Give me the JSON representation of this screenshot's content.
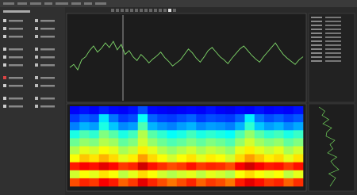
{
  "trace": {
    "values": [
      38,
      42,
      35,
      48,
      52,
      60,
      66,
      58,
      63,
      70,
      64,
      72,
      61,
      68,
      55,
      60,
      52,
      47,
      55,
      50,
      44,
      49,
      53,
      58,
      51,
      46,
      40,
      44,
      48,
      55,
      62,
      57,
      50,
      45,
      52,
      60,
      64,
      58,
      52,
      48,
      43,
      50,
      56,
      62,
      66,
      60,
      54,
      49,
      45,
      52,
      58,
      64,
      70,
      62,
      55,
      50,
      46,
      42,
      48,
      52
    ]
  },
  "spectrogram": {
    "rows": [
      [
        12,
        14,
        12,
        15,
        13,
        12,
        14,
        20,
        13,
        12,
        11,
        12,
        13,
        12,
        14,
        12,
        11,
        13,
        12,
        14,
        12,
        13,
        12,
        14
      ],
      [
        18,
        22,
        20,
        35,
        24,
        18,
        20,
        38,
        22,
        19,
        18,
        20,
        22,
        18,
        20,
        19,
        18,
        22,
        36,
        24,
        20,
        22,
        19,
        21
      ],
      [
        25,
        30,
        28,
        40,
        32,
        26,
        28,
        45,
        30,
        27,
        25,
        28,
        30,
        26,
        28,
        27,
        25,
        30,
        42,
        32,
        28,
        30,
        26,
        29
      ],
      [
        40,
        45,
        42,
        50,
        46,
        40,
        44,
        55,
        46,
        42,
        38,
        40,
        44,
        40,
        42,
        40,
        38,
        45,
        52,
        46,
        42,
        44,
        40,
        43
      ],
      [
        48,
        52,
        50,
        55,
        53,
        47,
        50,
        58,
        52,
        48,
        45,
        47,
        50,
        47,
        50,
        48,
        45,
        52,
        58,
        53,
        50,
        52,
        47,
        50
      ],
      [
        55,
        60,
        58,
        62,
        60,
        54,
        57,
        64,
        60,
        55,
        52,
        55,
        58,
        54,
        57,
        55,
        52,
        60,
        64,
        60,
        57,
        60,
        54,
        58
      ],
      [
        62,
        68,
        65,
        70,
        66,
        60,
        64,
        72,
        66,
        62,
        58,
        62,
        65,
        60,
        64,
        62,
        58,
        66,
        72,
        68,
        64,
        66,
        60,
        65
      ],
      [
        85,
        88,
        86,
        90,
        87,
        82,
        84,
        92,
        86,
        83,
        80,
        82,
        86,
        82,
        84,
        83,
        80,
        88,
        92,
        88,
        85,
        86,
        82,
        86
      ],
      [
        58,
        62,
        60,
        65,
        62,
        56,
        60,
        66,
        62,
        58,
        55,
        58,
        60,
        56,
        60,
        58,
        55,
        62,
        66,
        62,
        60,
        62,
        56,
        60
      ],
      [
        80,
        84,
        82,
        88,
        85,
        78,
        82,
        90,
        84,
        80,
        76,
        80,
        84,
        78,
        82,
        80,
        76,
        85,
        90,
        86,
        82,
        84,
        78,
        83
      ]
    ]
  },
  "side_profile": {
    "values": [
      20,
      35,
      28,
      45,
      30,
      52,
      40,
      38,
      60,
      48,
      55,
      42,
      65,
      50,
      58,
      70,
      45,
      62,
      55,
      48
    ]
  }
}
